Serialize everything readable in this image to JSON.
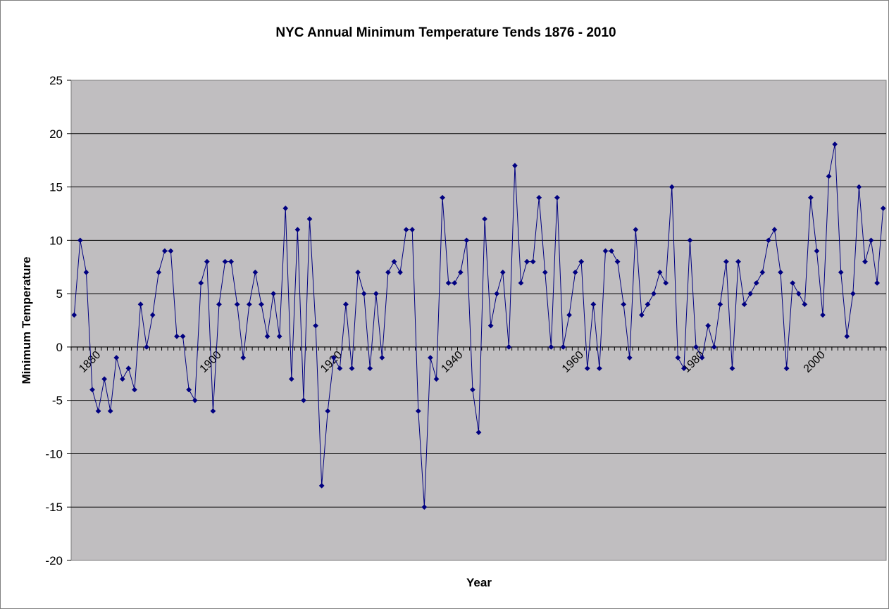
{
  "chart_data": {
    "type": "line",
    "title": "NYC Annual Minimum Temperature Tends 1876 - 2010",
    "xlabel": "Year",
    "ylabel": "Minimum Temperature",
    "x_start": 1876,
    "x_end": 2010,
    "ylim": [
      -20,
      25
    ],
    "yticks": [
      25,
      20,
      15,
      10,
      5,
      0,
      -5,
      -10,
      -15,
      -20
    ],
    "xtick_labels": [
      "1880",
      "1900",
      "1920",
      "1940",
      "1960",
      "1980",
      "2000"
    ],
    "grid": "horizontal",
    "legend": "none",
    "plot_background": "#C0BEC0",
    "series": [
      {
        "color": "#000080",
        "marker": "diamond",
        "values": [
          3,
          10,
          7,
          -4,
          -6,
          -3,
          -6,
          -1,
          -3,
          -2,
          -4,
          4,
          0,
          3,
          7,
          9,
          9,
          1,
          1,
          -4,
          -5,
          6,
          8,
          -6,
          4,
          8,
          8,
          4,
          -1,
          4,
          7,
          4,
          1,
          5,
          1,
          13,
          -3,
          11,
          -5,
          12,
          2,
          -13,
          -6,
          -1,
          -2,
          4,
          -2,
          7,
          5,
          -2,
          5,
          -1,
          7,
          8,
          7,
          11,
          11,
          -6,
          -15,
          -1,
          -3,
          14,
          6,
          6,
          7,
          10,
          -4,
          -8,
          12,
          2,
          5,
          7,
          0,
          17,
          6,
          8,
          8,
          14,
          7,
          0,
          14,
          0,
          3,
          7,
          8,
          -2,
          4,
          -2,
          9,
          9,
          8,
          4,
          -1,
          11,
          3,
          4,
          5,
          7,
          6,
          15,
          -1,
          -2,
          10,
          0,
          -1,
          2,
          0,
          4,
          8,
          -2,
          8,
          4,
          5,
          6,
          7,
          10,
          11,
          7,
          -2,
          6,
          5,
          4,
          14,
          9,
          3,
          16,
          19,
          7,
          1,
          5,
          15,
          8,
          10,
          6,
          13
        ]
      }
    ]
  }
}
